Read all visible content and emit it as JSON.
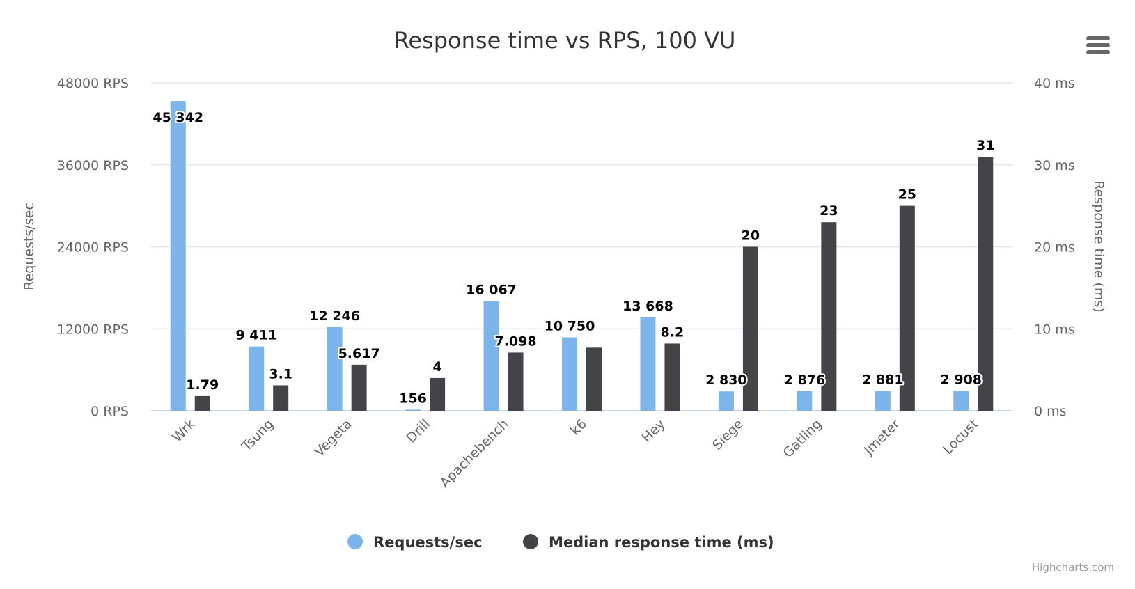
{
  "chart_data": {
    "type": "bar",
    "title": "Response time vs RPS, 100 VU",
    "categories": [
      "Wrk",
      "Tsung",
      "Vegeta",
      "Drill",
      "Apachebench",
      "k6",
      "Hey",
      "Siege",
      "Gatling",
      "Jmeter",
      "Locust"
    ],
    "series": [
      {
        "name": "Requests/sec",
        "axis": "left",
        "color": "#7cb5ec",
        "values": [
          45342,
          9411,
          12246,
          156,
          16067,
          10750,
          13668,
          2830,
          2876,
          2881,
          2908
        ],
        "labels": [
          "45 342",
          "9 411",
          "12 246",
          "156",
          "16 067",
          "10 750",
          "13 668",
          "2 830",
          "2 876",
          "2 881",
          "2 908"
        ]
      },
      {
        "name": "Median response time (ms)",
        "axis": "right",
        "color": "#434348",
        "values": [
          1.79,
          3.1,
          5.617,
          4,
          7.098,
          7.7,
          8.2,
          20,
          23,
          25,
          31
        ],
        "labels": [
          "1.79",
          "3.1",
          "5.617",
          "4",
          "7.098",
          "",
          "8.2",
          "20",
          "23",
          "25",
          "31"
        ]
      }
    ],
    "y_left": {
      "title": "Requests/sec",
      "range": [
        0,
        48000
      ],
      "ticks": [
        "0 RPS",
        "12000 RPS",
        "24000 RPS",
        "36000 RPS",
        "48000 RPS"
      ]
    },
    "y_right": {
      "title": "Response time (ms)",
      "range": [
        0,
        40
      ],
      "ticks": [
        "0 ms",
        "10 ms",
        "20 ms",
        "30 ms",
        "40 ms"
      ]
    },
    "grid": true,
    "legend": "bottom-center",
    "credits": "Highcharts.com"
  },
  "menu": {
    "icon": "hamburger-menu-icon"
  }
}
